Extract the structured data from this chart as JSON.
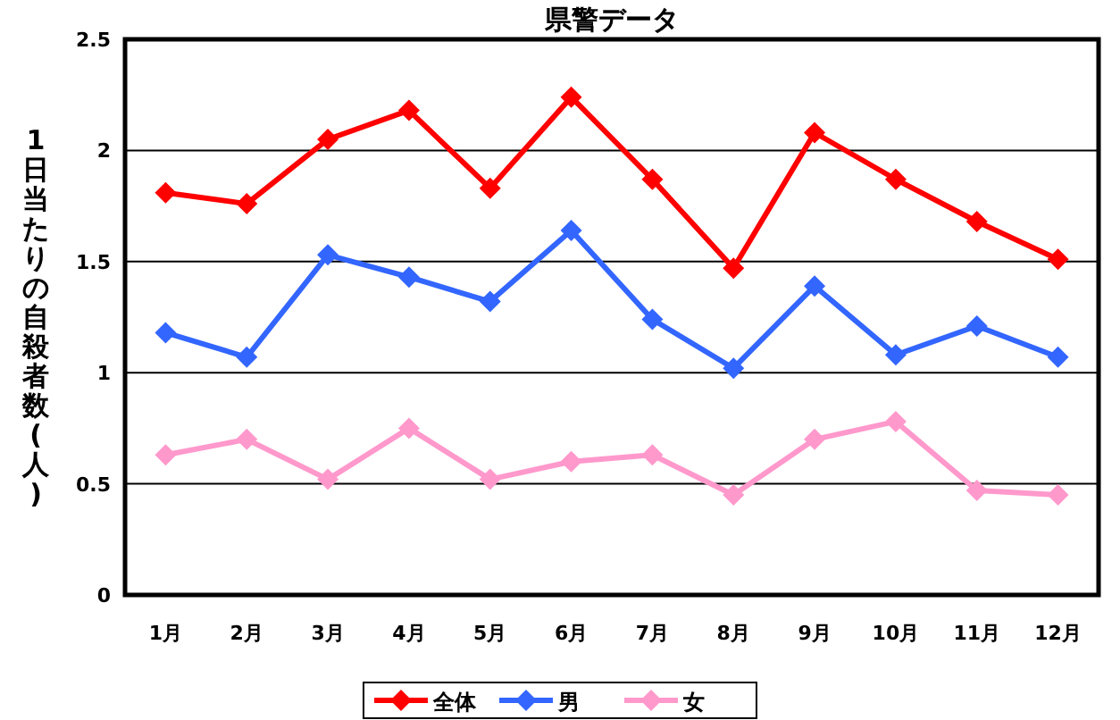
{
  "chart_data": {
    "type": "line",
    "title": "県警データ",
    "ylabel": "1日当たりの自殺者数(人)",
    "categories": [
      "1月",
      "2月",
      "3月",
      "4月",
      "5月",
      "6月",
      "7月",
      "8月",
      "9月",
      "10月",
      "11月",
      "12月"
    ],
    "series": [
      {
        "name": "全体",
        "color": "#ff0000",
        "values": [
          1.81,
          1.76,
          2.05,
          2.18,
          1.83,
          2.24,
          1.87,
          1.47,
          2.08,
          1.87,
          1.68,
          1.51
        ]
      },
      {
        "name": "男",
        "color": "#3366ff",
        "values": [
          1.18,
          1.07,
          1.53,
          1.43,
          1.32,
          1.64,
          1.24,
          1.02,
          1.39,
          1.08,
          1.21,
          1.07
        ]
      },
      {
        "name": "女",
        "color": "#ff99cc",
        "values": [
          0.63,
          0.7,
          0.52,
          0.75,
          0.52,
          0.6,
          0.63,
          0.45,
          0.7,
          0.78,
          0.47,
          0.45
        ]
      }
    ],
    "ylim": [
      0,
      2.5
    ],
    "yticks": [
      0,
      0.5,
      1,
      1.5,
      2,
      2.5
    ],
    "grid": "y",
    "legend": "bottom",
    "marker": "diamond",
    "line_style": "solid"
  }
}
